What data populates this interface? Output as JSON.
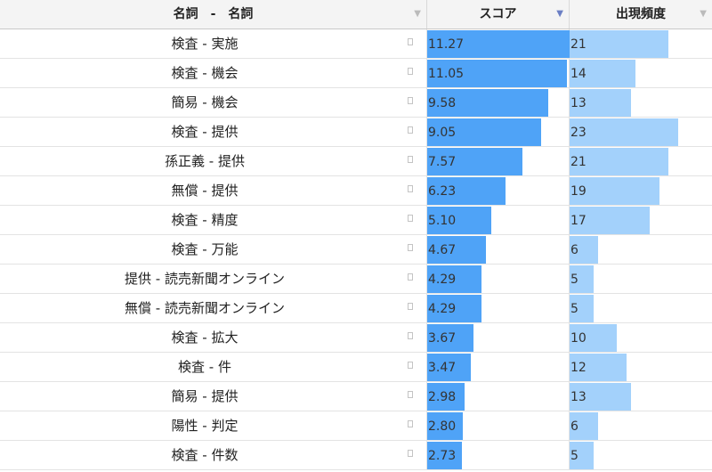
{
  "header": {
    "pair_label": "名詞　-　名詞",
    "score_label": "スコア",
    "freq_label": "出現頻度",
    "sort_icon": "▼"
  },
  "chart_data": {
    "type": "table",
    "columns": [
      "名詞　-　名詞",
      "スコア",
      "出現頻度"
    ],
    "sorted_by": "スコア",
    "rows": [
      {
        "pair": "検査 - 実施",
        "score": "11.27",
        "freq": 21
      },
      {
        "pair": "検査 - 機会",
        "score": "11.05",
        "freq": 14
      },
      {
        "pair": "簡易 - 機会",
        "score": "9.58",
        "freq": 13
      },
      {
        "pair": "検査 - 提供",
        "score": "9.05",
        "freq": 23
      },
      {
        "pair": "孫正義 - 提供",
        "score": "7.57",
        "freq": 21
      },
      {
        "pair": "無償 - 提供",
        "score": "6.23",
        "freq": 19
      },
      {
        "pair": "検査 - 精度",
        "score": "5.10",
        "freq": 17
      },
      {
        "pair": "検査 - 万能",
        "score": "4.67",
        "freq": 6
      },
      {
        "pair": "提供 - 読売新聞オンライン",
        "score": "4.29",
        "freq": 5
      },
      {
        "pair": "無償 - 読売新聞オンライン",
        "score": "4.29",
        "freq": 5
      },
      {
        "pair": "検査 - 拡大",
        "score": "3.67",
        "freq": 10
      },
      {
        "pair": "検査 - 件",
        "score": "3.47",
        "freq": 12
      },
      {
        "pair": "簡易 - 提供",
        "score": "2.98",
        "freq": 13
      },
      {
        "pair": "陽性 - 判定",
        "score": "2.80",
        "freq": 6
      },
      {
        "pair": "検査 - 件数",
        "score": "2.73",
        "freq": 5
      }
    ],
    "score_max": 11.27,
    "freq_max": 23
  },
  "colors": {
    "score_bar": "#4fa3f7",
    "freq_bar": "#a3d1fb",
    "header_bg": "#f4f4f4",
    "sort_active": "#6b7fc4"
  }
}
